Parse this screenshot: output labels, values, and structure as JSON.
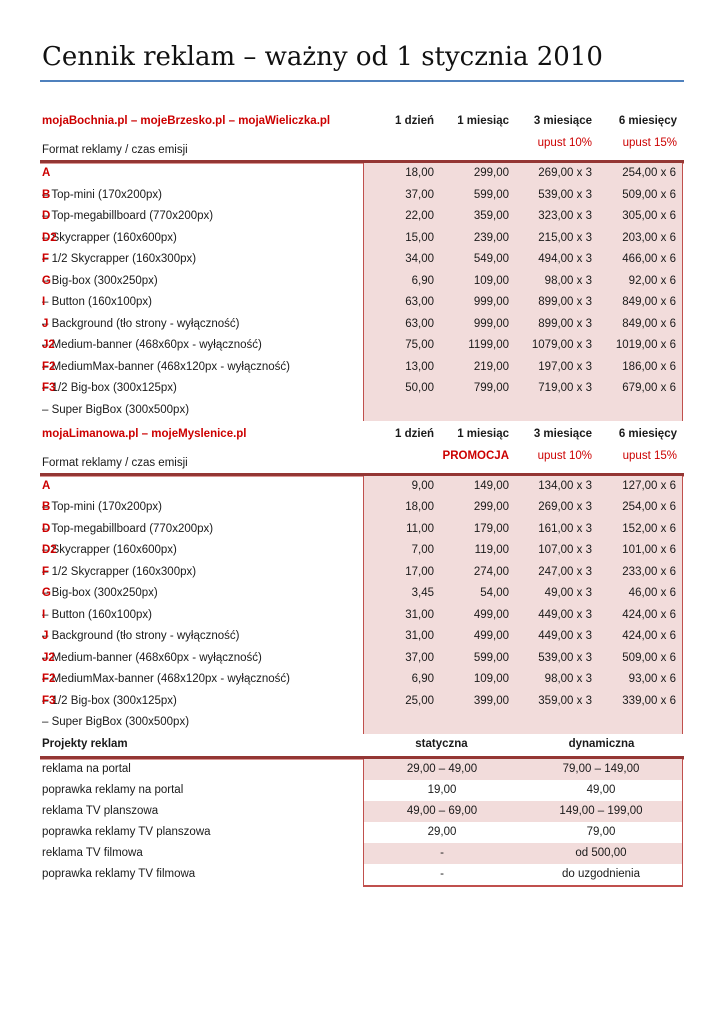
{
  "document": {
    "title": "Cennik reklam – ważny od 1 stycznia 2010"
  },
  "colors": {
    "accent_red_text": "#cc0000",
    "table_top_border": "#943634",
    "table_box_border": "#c0504d",
    "row_shading": "#f2dcdb",
    "title_rule_blue": "#4f81bd"
  },
  "tables": [
    {
      "title": "mojaBochnia.pl – mojeBrzesko.pl – mojaWieliczka.pl",
      "emission_label": "Format reklamy / czas emisji",
      "columns": [
        "1 dzień",
        "1 miesiąc",
        "3 miesiące",
        "6 miesięcy"
      ],
      "subcolumns": [
        "",
        "",
        "upust 10%",
        "upust 15%"
      ],
      "rows": [
        {
          "code": "A",
          "label": "– Top-mini (170x200px)",
          "values": [
            "18,00",
            "299,00",
            "269,00 x 3",
            "254,00 x 6"
          ]
        },
        {
          "code": "B",
          "label": "– Top-megabillboard (770x200px)",
          "values": [
            "37,00",
            "599,00",
            "539,00 x 3",
            "509,00 x 6"
          ]
        },
        {
          "code": "D",
          "label": "– Skycrapper (160x600px)",
          "values": [
            "22,00",
            "359,00",
            "323,00 x 3",
            "305,00 x 6"
          ]
        },
        {
          "code": "D2",
          "label": "– 1/2 Skycrapper (160x300px)",
          "values": [
            "15,00",
            "239,00",
            "215,00 x 3",
            "203,00 x 6"
          ]
        },
        {
          "code": "F",
          "label": "– Big-box (300x250px)",
          "values": [
            "34,00",
            "549,00",
            "494,00 x 3",
            "466,00 x 6"
          ]
        },
        {
          "code": "G",
          "label": "– Button (160x100px)",
          "values": [
            "6,90",
            "109,00",
            "98,00 x 3",
            "92,00 x 6"
          ]
        },
        {
          "code": "I",
          "label": "– Background (tło strony - wyłączność)",
          "values": [
            "63,00",
            "999,00",
            "899,00 x 3",
            "849,00 x 6"
          ]
        },
        {
          "code": "J",
          "label": "– Medium-banner (468x60px - wyłączność)",
          "values": [
            "63,00",
            "999,00",
            "899,00 x 3",
            "849,00 x 6"
          ]
        },
        {
          "code": "J2",
          "label": "– MediumMax-banner (468x120px - wyłączność)",
          "values": [
            "75,00",
            "1199,00",
            "1079,00 x 3",
            "1019,00 x 6"
          ]
        },
        {
          "code": "F2",
          "label": "– 1/2 Big-box (300x125px)",
          "values": [
            "13,00",
            "219,00",
            "197,00 x 3",
            "186,00 x 6"
          ]
        },
        {
          "code": "F3",
          "label": "– Super BigBox (300x500px)",
          "values": [
            "50,00",
            "799,00",
            "719,00 x 3",
            "679,00 x 6"
          ]
        }
      ]
    },
    {
      "title": "mojaLimanowa.pl – mojeMyslenice.pl",
      "emission_label": "Format reklamy / czas emisji",
      "columns": [
        "1 dzień",
        "1 miesiąc",
        "3 miesiące",
        "6 miesięcy"
      ],
      "subcolumns": [
        "",
        "PROMOCJA",
        "upust 10%",
        "upust 15%"
      ],
      "rows": [
        {
          "code": "A",
          "label": "– Top-mini (170x200px)",
          "values": [
            "9,00",
            "149,00",
            "134,00 x 3",
            "127,00 x 6"
          ]
        },
        {
          "code": "B",
          "label": "– Top-megabillboard (770x200px)",
          "values": [
            "18,00",
            "299,00",
            "269,00 x 3",
            "254,00 x 6"
          ]
        },
        {
          "code": "D",
          "label": "– Skycrapper (160x600px)",
          "values": [
            "11,00",
            "179,00",
            "161,00 x 3",
            "152,00 x 6"
          ]
        },
        {
          "code": "D2",
          "label": "– 1/2 Skycrapper (160x300px)",
          "values": [
            "7,00",
            "119,00",
            "107,00 x 3",
            "101,00 x 6"
          ]
        },
        {
          "code": "F",
          "label": "– Big-box (300x250px)",
          "values": [
            "17,00",
            "274,00",
            "247,00 x 3",
            "233,00 x 6"
          ]
        },
        {
          "code": "G",
          "label": "– Button (160x100px)",
          "values": [
            "3,45",
            "54,00",
            "49,00 x 3",
            "46,00 x 6"
          ]
        },
        {
          "code": "I",
          "label": "– Background (tło strony - wyłączność)",
          "values": [
            "31,00",
            "499,00",
            "449,00 x 3",
            "424,00 x 6"
          ]
        },
        {
          "code": "J",
          "label": "– Medium-banner (468x60px - wyłączność)",
          "values": [
            "31,00",
            "499,00",
            "449,00 x 3",
            "424,00 x 6"
          ]
        },
        {
          "code": "J2",
          "label": "– MediumMax-banner (468x120px - wyłączność)",
          "values": [
            "37,00",
            "599,00",
            "539,00 x 3",
            "509,00 x 6"
          ]
        },
        {
          "code": "F2",
          "label": "– 1/2 Big-box (300x125px)",
          "values": [
            "6,90",
            "109,00",
            "98,00 x 3",
            "93,00 x 6"
          ]
        },
        {
          "code": "F3",
          "label": "– Super BigBox (300x500px)",
          "values": [
            "25,00",
            "399,00",
            "359,00 x 3",
            "339,00 x 6"
          ]
        }
      ]
    },
    {
      "title": "Projekty reklam",
      "columns": [
        "statyczna",
        "dynamiczna"
      ],
      "rows": [
        {
          "label": "reklama na portal",
          "values": [
            "29,00 – 49,00",
            "79,00 – 149,00"
          ]
        },
        {
          "label": "poprawka reklamy na portal",
          "values": [
            "19,00",
            "49,00"
          ]
        },
        {
          "label": "reklama TV planszowa",
          "values": [
            "49,00 – 69,00",
            "149,00 – 199,00"
          ]
        },
        {
          "label": "poprawka reklamy TV planszowa",
          "values": [
            "29,00",
            "79,00"
          ]
        },
        {
          "label": "reklama TV filmowa",
          "values": [
            "-",
            "od 500,00"
          ]
        },
        {
          "label": "poprawka reklamy TV filmowa",
          "values": [
            "-",
            "do uzgodnienia"
          ]
        }
      ]
    }
  ]
}
